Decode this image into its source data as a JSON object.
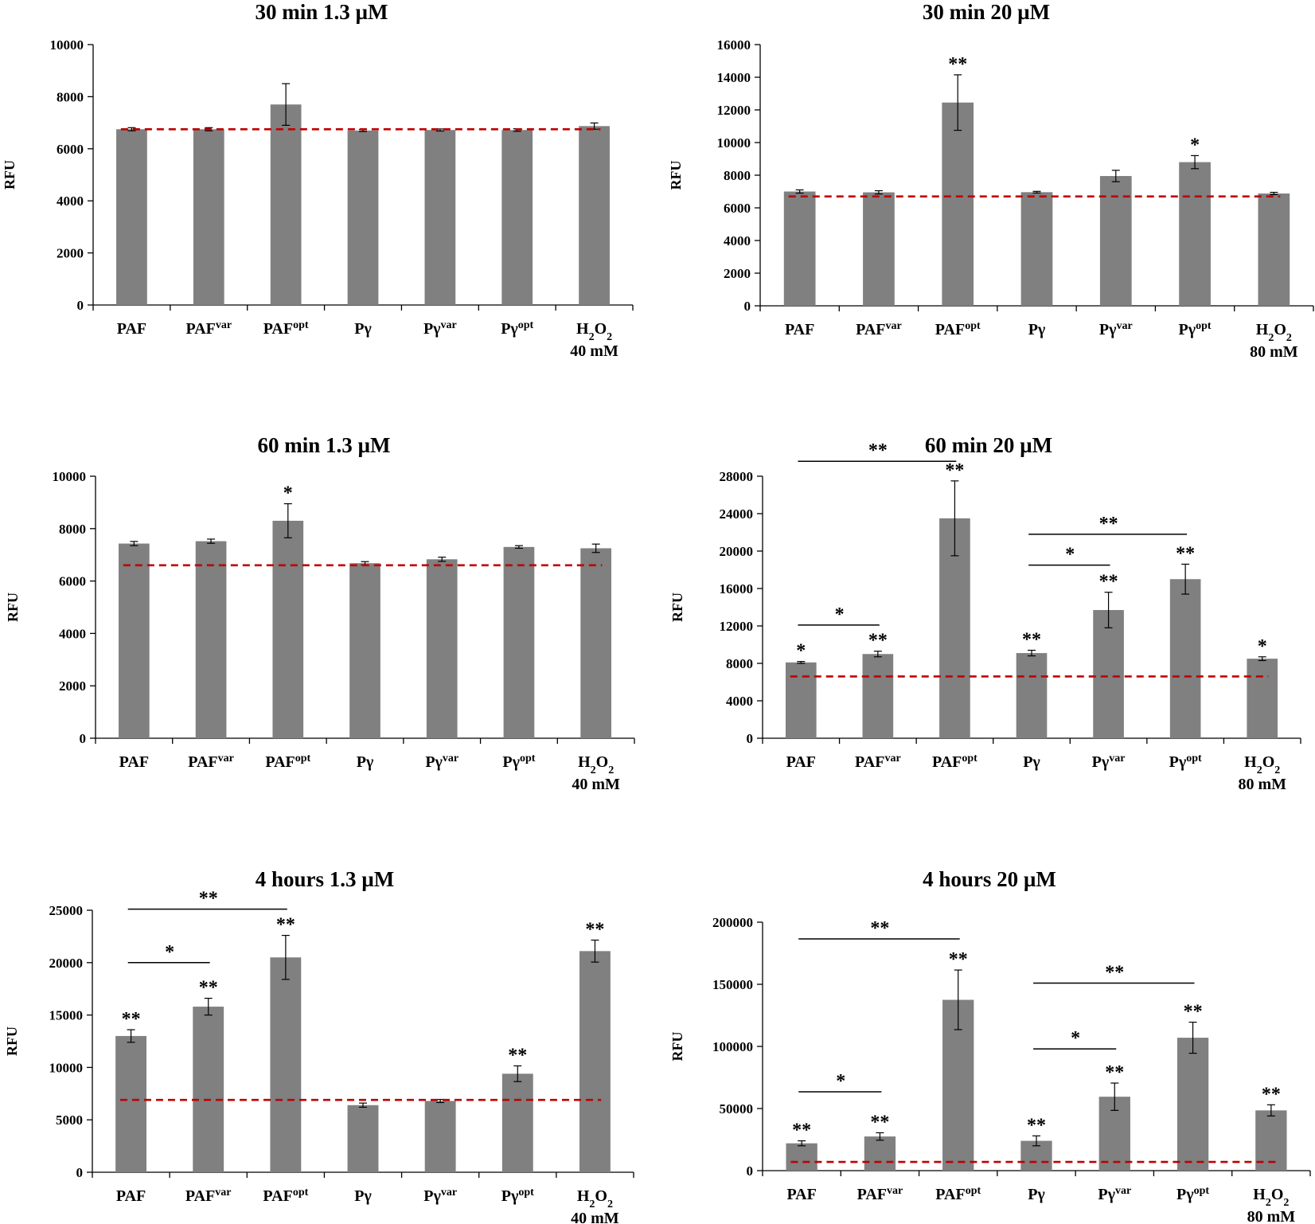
{
  "chart_data": [
    {
      "type": "bar",
      "title": "30 min  1.3 µM",
      "ylabel": "RFU",
      "ylim": [
        0,
        10000
      ],
      "yticks": [
        "0",
        "2000",
        "4000",
        "6000",
        "8000",
        "10000"
      ],
      "categories": [
        {
          "base": "PAF",
          "sup": ""
        },
        {
          "base": "PAF",
          "sup": "var"
        },
        {
          "base": "PAF",
          "sup": "opt"
        },
        {
          "base": "Pγ",
          "sup": ""
        },
        {
          "base": "Pγ",
          "sup": "var"
        },
        {
          "base": "Pγ",
          "sup": "opt"
        },
        {
          "base": "H",
          "sub": "2",
          "base2": "O",
          "sub2": "2",
          "line2": "40 mM"
        }
      ],
      "values": [
        6750,
        6750,
        7700,
        6700,
        6720,
        6720,
        6870
      ],
      "errors": [
        60,
        60,
        800,
        40,
        40,
        50,
        120
      ],
      "baseline": 6750,
      "stars": [
        "",
        "",
        "",
        "",
        "",
        "",
        ""
      ],
      "brackets": []
    },
    {
      "type": "bar",
      "title": "30 min  20 µM",
      "ylabel": "RFU",
      "ylim": [
        0,
        16000
      ],
      "yticks": [
        "0",
        "2000",
        "4000",
        "6000",
        "8000",
        "10000",
        "12000",
        "14000",
        "16000"
      ],
      "categories": [
        {
          "base": "PAF",
          "sup": ""
        },
        {
          "base": "PAF",
          "sup": "var"
        },
        {
          "base": "PAF",
          "sup": "opt"
        },
        {
          "base": "Pγ",
          "sup": ""
        },
        {
          "base": "Pγ",
          "sup": "var"
        },
        {
          "base": "Pγ",
          "sup": "opt"
        },
        {
          "base": "H",
          "sub": "2",
          "base2": "O",
          "sub2": "2",
          "line2": "80 mM"
        }
      ],
      "values": [
        7000,
        6950,
        12450,
        6960,
        7950,
        8800,
        6880
      ],
      "errors": [
        100,
        100,
        1700,
        50,
        350,
        400,
        70
      ],
      "baseline": 6700,
      "stars": [
        "",
        "",
        "**",
        "",
        "",
        "*",
        ""
      ],
      "brackets": []
    },
    {
      "type": "bar",
      "title": "60 min  1.3 µM",
      "ylabel": "RFU",
      "ylim": [
        0,
        10000
      ],
      "yticks": [
        "0",
        "2000",
        "4000",
        "6000",
        "8000",
        "10000"
      ],
      "categories": [
        {
          "base": "PAF",
          "sup": ""
        },
        {
          "base": "PAF",
          "sup": "var"
        },
        {
          "base": "PAF",
          "sup": "opt"
        },
        {
          "base": "Pγ",
          "sup": ""
        },
        {
          "base": "Pγ",
          "sup": "var"
        },
        {
          "base": "Pγ",
          "sup": "opt"
        },
        {
          "base": "H",
          "sub": "2",
          "base2": "O",
          "sub2": "2",
          "line2": "40 mM"
        }
      ],
      "values": [
        7430,
        7520,
        8300,
        6680,
        6830,
        7300,
        7250
      ],
      "errors": [
        80,
        80,
        650,
        60,
        80,
        50,
        160
      ],
      "baseline": 6600,
      "stars": [
        "",
        "",
        "*",
        "",
        "",
        "",
        ""
      ],
      "brackets": []
    },
    {
      "type": "bar",
      "title": "60 min  20 µM",
      "ylabel": "RFU",
      "ylim": [
        0,
        28000
      ],
      "yticks": [
        "0",
        "4000",
        "8000",
        "12000",
        "16000",
        "20000",
        "24000",
        "28000"
      ],
      "categories": [
        {
          "base": "PAF",
          "sup": ""
        },
        {
          "base": "PAF",
          "sup": "var"
        },
        {
          "base": "PAF",
          "sup": "opt"
        },
        {
          "base": "Pγ",
          "sup": ""
        },
        {
          "base": "Pγ",
          "sup": "var"
        },
        {
          "base": "Pγ",
          "sup": "opt"
        },
        {
          "base": "H",
          "sub": "2",
          "base2": "O",
          "sub2": "2",
          "line2": "80 mM"
        }
      ],
      "values": [
        8100,
        9000,
        23500,
        9100,
        13700,
        17000,
        8500
      ],
      "errors": [
        100,
        300,
        4000,
        300,
        1900,
        1600,
        200
      ],
      "baseline": 6600,
      "stars": [
        "*",
        "**",
        "**",
        "**",
        "**",
        "**",
        "*"
      ],
      "brackets": [
        {
          "from": 0,
          "to": 2,
          "label": "**",
          "y": 29600
        },
        {
          "from": 0,
          "to": 1,
          "label": "*",
          "y": 12100
        },
        {
          "from": 3,
          "to": 5,
          "label": "**",
          "y": 21800
        },
        {
          "from": 3,
          "to": 4,
          "label": "*",
          "y": 18500
        }
      ]
    },
    {
      "type": "bar",
      "title": "4 hours  1.3 µM",
      "ylabel": "RFU",
      "ylim": [
        0,
        25000
      ],
      "yticks": [
        "0",
        "5000",
        "10000",
        "15000",
        "20000",
        "25000"
      ],
      "categories": [
        {
          "base": "PAF",
          "sup": ""
        },
        {
          "base": "PAF",
          "sup": "var"
        },
        {
          "base": "PAF",
          "sup": "opt"
        },
        {
          "base": "Pγ",
          "sup": ""
        },
        {
          "base": "Pγ",
          "sup": "var"
        },
        {
          "base": "Pγ",
          "sup": "opt"
        },
        {
          "base": "H",
          "sub": "2",
          "base2": "O",
          "sub2": "2",
          "line2": "40 mM"
        }
      ],
      "values": [
        13000,
        15800,
        20500,
        6400,
        6800,
        9400,
        21100
      ],
      "errors": [
        600,
        800,
        2100,
        200,
        150,
        750,
        1050
      ],
      "baseline": 6900,
      "stars": [
        "**",
        "**",
        "**",
        "",
        "",
        "**",
        "**"
      ],
      "brackets": [
        {
          "from": 0,
          "to": 2,
          "label": "**",
          "y": 25100
        },
        {
          "from": 0,
          "to": 1,
          "label": "*",
          "y": 20000
        }
      ]
    },
    {
      "type": "bar",
      "title": "4 hours  20 µM",
      "ylabel": "RFU",
      "ylim": [
        0,
        200000
      ],
      "yticks": [
        "0",
        "50000",
        "100000",
        "150000",
        "200000"
      ],
      "categories": [
        {
          "base": "PAF",
          "sup": ""
        },
        {
          "base": "PAF",
          "sup": "var"
        },
        {
          "base": "PAF",
          "sup": "opt"
        },
        {
          "base": "Pγ",
          "sup": ""
        },
        {
          "base": "Pγ",
          "sup": "var"
        },
        {
          "base": "Pγ",
          "sup": "opt"
        },
        {
          "base": "H",
          "sub": "2",
          "base2": "O",
          "sub2": "2",
          "line2": "80 mM"
        }
      ],
      "values": [
        22000,
        27500,
        137500,
        24000,
        59500,
        107000,
        48500
      ],
      "errors": [
        2000,
        3000,
        24000,
        4000,
        11000,
        12500,
        4500
      ],
      "baseline": 7000,
      "stars": [
        "**",
        "**",
        "**",
        "**",
        "**",
        "**",
        "**"
      ],
      "brackets": [
        {
          "from": 0,
          "to": 2,
          "label": "**",
          "y": 186500
        },
        {
          "from": 0,
          "to": 1,
          "label": "*",
          "y": 63500
        },
        {
          "from": 3,
          "to": 5,
          "label": "**",
          "y": 151000
        },
        {
          "from": 3,
          "to": 4,
          "label": "*",
          "y": 98000
        }
      ]
    }
  ]
}
